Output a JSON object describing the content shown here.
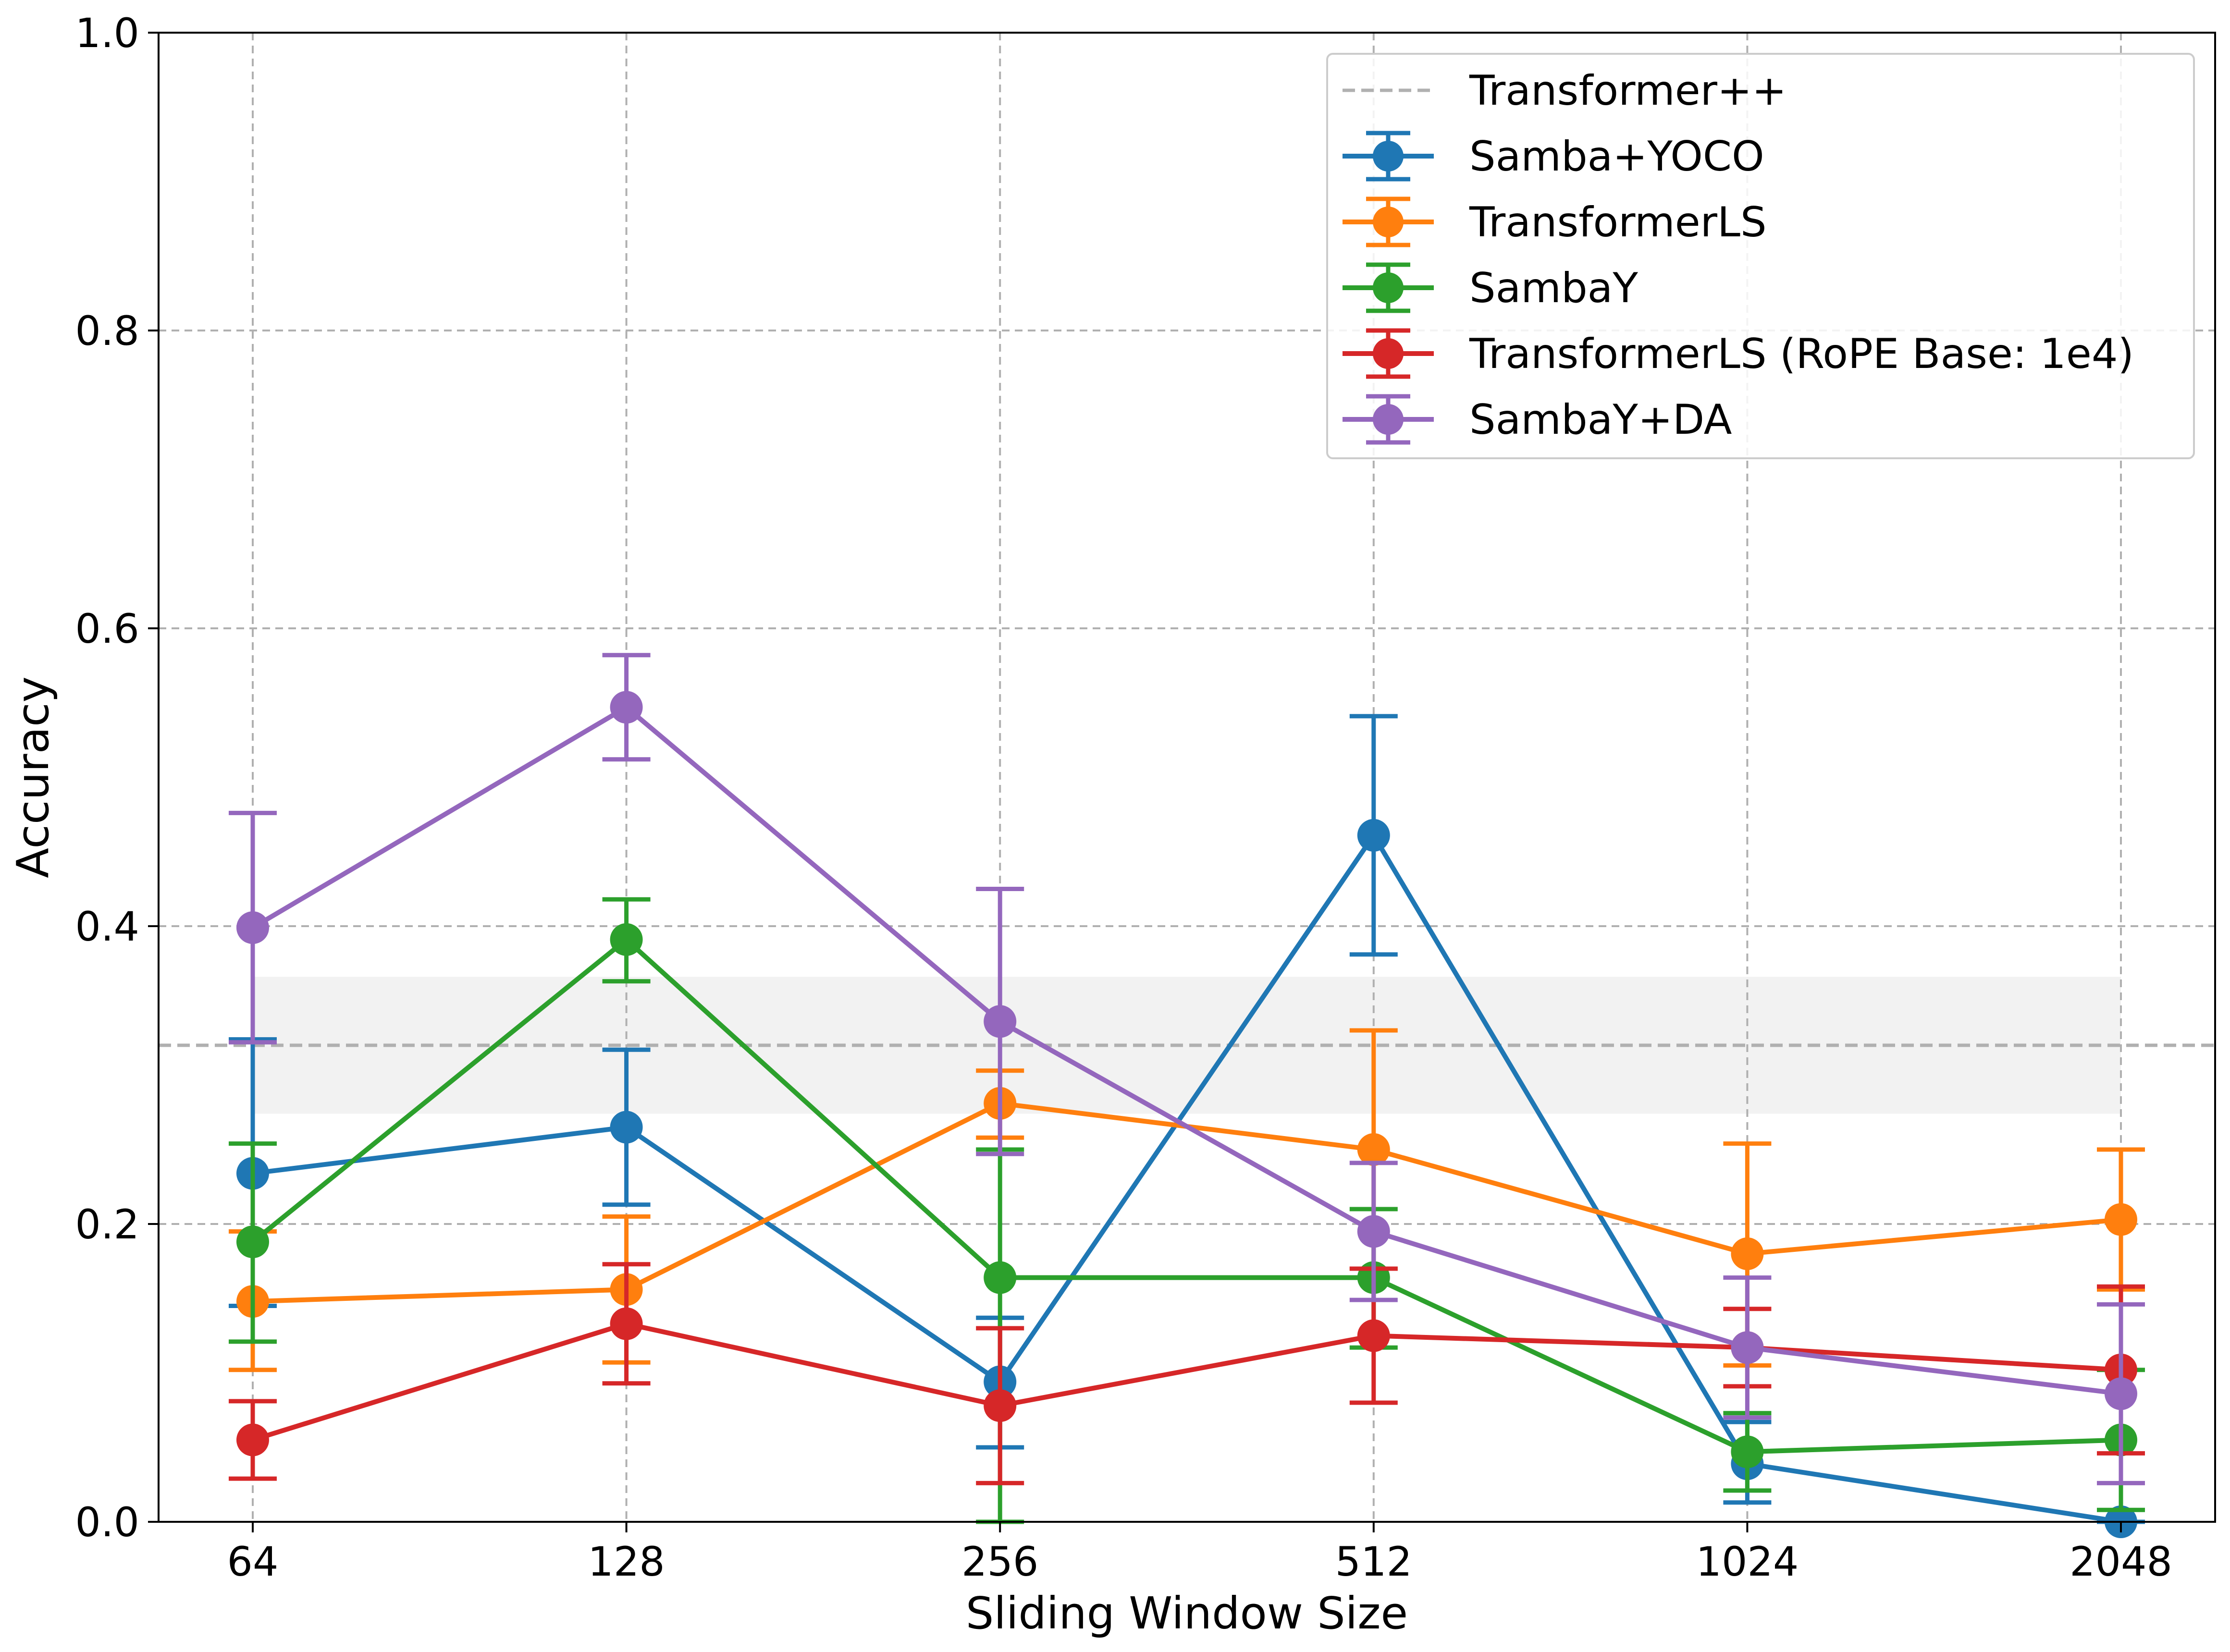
{
  "chart_data": {
    "type": "line",
    "title": "",
    "xlabel": "Sliding Window Size",
    "ylabel": "Accuracy",
    "categories": [
      "64",
      "128",
      "256",
      "512",
      "1024",
      "2048"
    ],
    "ylim": [
      0,
      1.0
    ],
    "yticks": [
      "0.0",
      "0.2",
      "0.4",
      "0.6",
      "0.8",
      "1.0"
    ],
    "grid": true,
    "legend_position": "top-right",
    "baseline": {
      "name": "Transformer++",
      "value": 0.32,
      "band": [
        0.274,
        0.366
      ],
      "color": "#b0b0b0"
    },
    "series": [
      {
        "name": "Samba+YOCO",
        "color": "#1f77b4",
        "values": [
          0.234,
          0.265,
          0.094,
          0.461,
          0.039,
          0.0
        ],
        "err_low": [
          0.145,
          0.213,
          0.05,
          0.381,
          0.013,
          0.0
        ],
        "err_high": [
          0.324,
          0.317,
          0.137,
          0.541,
          0.067,
          0.0
        ]
      },
      {
        "name": "TransformerLS",
        "color": "#ff7f0e",
        "values": [
          0.148,
          0.156,
          0.281,
          0.25,
          0.18,
          0.203
        ],
        "err_low": [
          0.102,
          0.107,
          0.258,
          0.17,
          0.105,
          0.156
        ],
        "err_high": [
          0.195,
          0.205,
          0.303,
          0.33,
          0.254,
          0.25
        ]
      },
      {
        "name": "SambaY",
        "color": "#2ca02c",
        "values": [
          0.188,
          0.391,
          0.164,
          0.164,
          0.047,
          0.055
        ],
        "err_low": [
          0.121,
          0.363,
          0.0,
          0.117,
          0.021,
          0.008
        ],
        "err_high": [
          0.254,
          0.418,
          0.25,
          0.21,
          0.073,
          0.102
        ]
      },
      {
        "name": "TransformerLS (RoPE Base: 1e4)",
        "color": "#d62728",
        "values": [
          0.055,
          0.133,
          0.078,
          0.125,
          0.117,
          0.102
        ],
        "err_low": [
          0.029,
          0.093,
          0.026,
          0.08,
          0.091,
          0.046
        ],
        "err_high": [
          0.081,
          0.173,
          0.13,
          0.17,
          0.143,
          0.158
        ]
      },
      {
        "name": "SambaY+DA",
        "color": "#9467bd",
        "values": [
          0.399,
          0.547,
          0.336,
          0.195,
          0.117,
          0.086
        ],
        "err_low": [
          0.322,
          0.512,
          0.247,
          0.149,
          0.07,
          0.026
        ],
        "err_high": [
          0.476,
          0.582,
          0.425,
          0.241,
          0.164,
          0.146
        ]
      }
    ]
  }
}
